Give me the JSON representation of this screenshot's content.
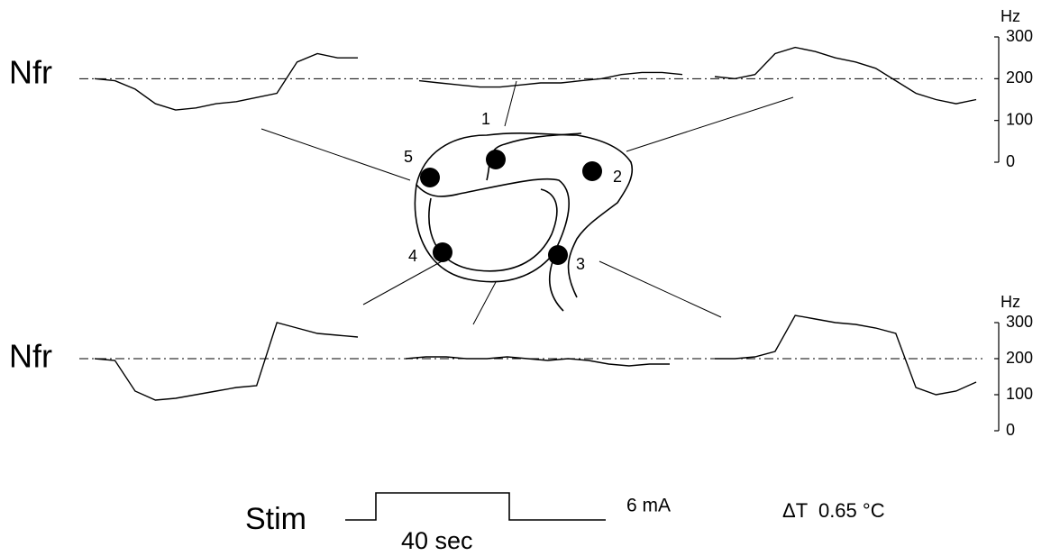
{
  "panels": [
    {
      "label": "Nfr",
      "axis_label": "Hz",
      "ylim": [
        0,
        300
      ],
      "yticks": [
        0,
        100,
        200,
        300
      ],
      "baseline": 200,
      "traces": [
        {
          "values": [
            200,
            195,
            175,
            140,
            125,
            130,
            140,
            145,
            155,
            165,
            240,
            260,
            250,
            250
          ]
        },
        {
          "values": [
            195,
            190,
            185,
            180,
            180,
            185,
            190,
            190,
            195,
            200,
            210,
            215,
            215,
            210
          ]
        },
        {
          "values": [
            205,
            200,
            210,
            260,
            275,
            265,
            250,
            240,
            225,
            195,
            165,
            150,
            140,
            150
          ]
        }
      ]
    },
    {
      "label": "Nfr",
      "axis_label": "Hz",
      "ylim": [
        0,
        300
      ],
      "yticks": [
        0,
        100,
        200,
        300
      ],
      "baseline": 200,
      "traces": [
        {
          "values": [
            200,
            195,
            110,
            85,
            90,
            100,
            110,
            120,
            125,
            300,
            285,
            270,
            265,
            260
          ]
        },
        {
          "values": [
            200,
            205,
            205,
            200,
            200,
            205,
            200,
            195,
            200,
            195,
            185,
            180,
            185,
            185
          ]
        },
        {
          "values": [
            200,
            200,
            205,
            220,
            320,
            310,
            300,
            295,
            285,
            270,
            120,
            100,
            110,
            135
          ]
        }
      ]
    }
  ],
  "sites": [
    "1",
    "2",
    "3",
    "4",
    "5"
  ],
  "stim": {
    "label": "Stim",
    "duration": "40 sec",
    "amplitude": "6 mA",
    "delta_t": "ΔT  0.65 °C"
  }
}
